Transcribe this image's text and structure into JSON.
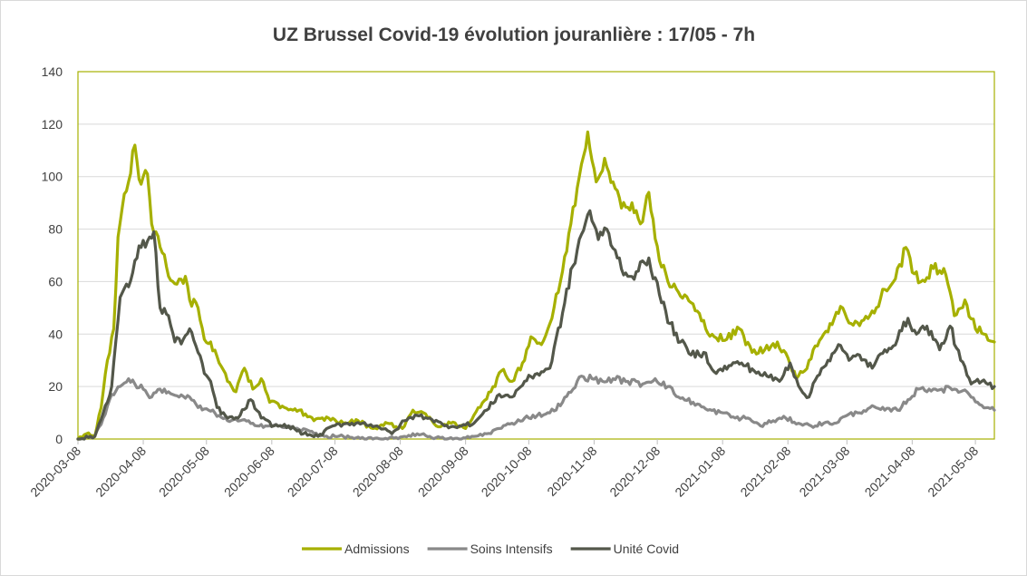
{
  "chart_data": {
    "type": "line",
    "title": "UZ Brussel Covid-19 évolution jouranlière : 17/05 - 7h",
    "xlabel": "",
    "ylabel": "",
    "x_range": [
      "2020-03-08",
      "2021-05-17"
    ],
    "ylim": [
      0,
      140
    ],
    "y_ticks": [
      "0",
      "20",
      "40",
      "60",
      "80",
      "100",
      "120",
      "140"
    ],
    "x_ticks": [
      "2020-03-08",
      "2020-04-08",
      "2020-05-08",
      "2020-06-08",
      "2020-07-08",
      "2020-08-08",
      "2020-09-08",
      "2020-10-08",
      "2020-11-08",
      "2020-12-08",
      "2021-01-08",
      "2021-02-08",
      "2021-03-08",
      "2021-04-08",
      "2021-05-08"
    ],
    "grid": "horizontal",
    "legend_position": "bottom",
    "series": [
      {
        "name": "Admissions",
        "color": "#a6b000",
        "points": [
          [
            "2020-03-08",
            0
          ],
          [
            "2020-03-12",
            2
          ],
          [
            "2020-03-16",
            1
          ],
          [
            "2020-03-19",
            12
          ],
          [
            "2020-03-22",
            30
          ],
          [
            "2020-03-25",
            42
          ],
          [
            "2020-03-27",
            77
          ],
          [
            "2020-03-29",
            88
          ],
          [
            "2020-04-01",
            98
          ],
          [
            "2020-04-04",
            112
          ],
          [
            "2020-04-06",
            99
          ],
          [
            "2020-04-08",
            100
          ],
          [
            "2020-04-10",
            101
          ],
          [
            "2020-04-12",
            82
          ],
          [
            "2020-04-14",
            79
          ],
          [
            "2020-04-17",
            71
          ],
          [
            "2020-04-20",
            62
          ],
          [
            "2020-04-24",
            59
          ],
          [
            "2020-04-28",
            62
          ],
          [
            "2020-04-30",
            53
          ],
          [
            "2020-05-04",
            50
          ],
          [
            "2020-05-07",
            38
          ],
          [
            "2020-05-10",
            37
          ],
          [
            "2020-05-14",
            29
          ],
          [
            "2020-05-18",
            22
          ],
          [
            "2020-05-22",
            18
          ],
          [
            "2020-05-26",
            27
          ],
          [
            "2020-05-30",
            19
          ],
          [
            "2020-06-03",
            23
          ],
          [
            "2020-06-07",
            14
          ],
          [
            "2020-06-14",
            12
          ],
          [
            "2020-06-21",
            11
          ],
          [
            "2020-06-28",
            7
          ],
          [
            "2020-07-05",
            8
          ],
          [
            "2020-07-12",
            6
          ],
          [
            "2020-07-19",
            7
          ],
          [
            "2020-07-26",
            4
          ],
          [
            "2020-08-02",
            6
          ],
          [
            "2020-08-09",
            4
          ],
          [
            "2020-08-14",
            11
          ],
          [
            "2020-08-19",
            10
          ],
          [
            "2020-08-25",
            5
          ],
          [
            "2020-09-01",
            6
          ],
          [
            "2020-09-08",
            4
          ],
          [
            "2020-09-14",
            12
          ],
          [
            "2020-09-20",
            18
          ],
          [
            "2020-09-25",
            26
          ],
          [
            "2020-09-30",
            22
          ],
          [
            "2020-10-05",
            29
          ],
          [
            "2020-10-09",
            39
          ],
          [
            "2020-10-14",
            36
          ],
          [
            "2020-10-19",
            46
          ],
          [
            "2020-10-24",
            64
          ],
          [
            "2020-10-28",
            82
          ],
          [
            "2020-11-01",
            100
          ],
          [
            "2020-11-05",
            117
          ],
          [
            "2020-11-09",
            98
          ],
          [
            "2020-11-13",
            107
          ],
          [
            "2020-11-17",
            98
          ],
          [
            "2020-11-21",
            88
          ],
          [
            "2020-11-26",
            90
          ],
          [
            "2020-11-30",
            82
          ],
          [
            "2020-12-04",
            94
          ],
          [
            "2020-12-09",
            68
          ],
          [
            "2020-12-13",
            60
          ],
          [
            "2020-12-18",
            56
          ],
          [
            "2020-12-24",
            52
          ],
          [
            "2020-12-29",
            45
          ],
          [
            "2021-01-04",
            39
          ],
          [
            "2021-01-10",
            38
          ],
          [
            "2021-01-16",
            42
          ],
          [
            "2021-01-22",
            33
          ],
          [
            "2021-01-28",
            34
          ],
          [
            "2021-02-03",
            37
          ],
          [
            "2021-02-08",
            31
          ],
          [
            "2021-02-12",
            23
          ],
          [
            "2021-02-16",
            26
          ],
          [
            "2021-02-20",
            34
          ],
          [
            "2021-02-25",
            40
          ],
          [
            "2021-03-02",
            46
          ],
          [
            "2021-03-06",
            50
          ],
          [
            "2021-03-10",
            44
          ],
          [
            "2021-03-15",
            45
          ],
          [
            "2021-03-21",
            48
          ],
          [
            "2021-03-26",
            57
          ],
          [
            "2021-03-31",
            61
          ],
          [
            "2021-04-05",
            73
          ],
          [
            "2021-04-09",
            63
          ],
          [
            "2021-04-14",
            60
          ],
          [
            "2021-04-18",
            65
          ],
          [
            "2021-04-23",
            65
          ],
          [
            "2021-04-28",
            47
          ],
          [
            "2021-05-03",
            53
          ],
          [
            "2021-05-08",
            42
          ],
          [
            "2021-05-12",
            40
          ],
          [
            "2021-05-17",
            37
          ]
        ]
      },
      {
        "name": "Soins Intensifs",
        "color": "#898989",
        "points": [
          [
            "2020-03-08",
            0
          ],
          [
            "2020-03-16",
            1
          ],
          [
            "2020-03-20",
            8
          ],
          [
            "2020-03-24",
            17
          ],
          [
            "2020-03-28",
            20
          ],
          [
            "2020-04-01",
            23
          ],
          [
            "2020-04-04",
            21
          ],
          [
            "2020-04-08",
            19
          ],
          [
            "2020-04-12",
            16
          ],
          [
            "2020-04-16",
            19
          ],
          [
            "2020-04-20",
            18
          ],
          [
            "2020-04-25",
            16
          ],
          [
            "2020-04-30",
            16
          ],
          [
            "2020-05-04",
            12
          ],
          [
            "2020-05-09",
            11
          ],
          [
            "2020-05-14",
            9
          ],
          [
            "2020-05-18",
            7
          ],
          [
            "2020-05-24",
            7
          ],
          [
            "2020-05-30",
            6
          ],
          [
            "2020-06-05",
            5
          ],
          [
            "2020-06-12",
            5
          ],
          [
            "2020-06-19",
            4
          ],
          [
            "2020-06-26",
            3
          ],
          [
            "2020-07-03",
            1
          ],
          [
            "2020-07-12",
            1
          ],
          [
            "2020-07-22",
            0
          ],
          [
            "2020-08-02",
            0
          ],
          [
            "2020-08-10",
            1
          ],
          [
            "2020-08-16",
            2
          ],
          [
            "2020-08-22",
            1
          ],
          [
            "2020-08-29",
            0
          ],
          [
            "2020-09-06",
            0
          ],
          [
            "2020-09-12",
            1
          ],
          [
            "2020-09-18",
            2
          ],
          [
            "2020-09-24",
            4
          ],
          [
            "2020-09-30",
            6
          ],
          [
            "2020-10-06",
            8
          ],
          [
            "2020-10-12",
            9
          ],
          [
            "2020-10-18",
            10
          ],
          [
            "2020-10-24",
            14
          ],
          [
            "2020-10-29",
            19
          ],
          [
            "2020-11-02",
            24
          ],
          [
            "2020-11-07",
            23
          ],
          [
            "2020-11-12",
            22
          ],
          [
            "2020-11-17",
            23
          ],
          [
            "2020-11-24",
            22
          ],
          [
            "2020-12-01",
            21
          ],
          [
            "2020-12-07",
            23
          ],
          [
            "2020-12-13",
            20
          ],
          [
            "2020-12-18",
            16
          ],
          [
            "2020-12-25",
            14
          ],
          [
            "2021-01-01",
            11
          ],
          [
            "2021-01-08",
            10
          ],
          [
            "2021-01-14",
            8
          ],
          [
            "2021-01-20",
            8
          ],
          [
            "2021-01-26",
            5
          ],
          [
            "2021-02-01",
            7
          ],
          [
            "2021-02-07",
            8
          ],
          [
            "2021-02-13",
            6
          ],
          [
            "2021-02-19",
            5
          ],
          [
            "2021-02-25",
            6
          ],
          [
            "2021-03-02",
            6
          ],
          [
            "2021-03-08",
            9
          ],
          [
            "2021-03-13",
            10
          ],
          [
            "2021-03-19",
            12
          ],
          [
            "2021-03-26",
            11
          ],
          [
            "2021-04-01",
            11
          ],
          [
            "2021-04-06",
            15
          ],
          [
            "2021-04-11",
            19
          ],
          [
            "2021-04-16",
            19
          ],
          [
            "2021-04-22",
            19
          ],
          [
            "2021-04-28",
            19
          ],
          [
            "2021-05-04",
            18
          ],
          [
            "2021-05-09",
            14
          ],
          [
            "2021-05-14",
            12
          ],
          [
            "2021-05-17",
            11
          ]
        ]
      },
      {
        "name": "Unité Covid",
        "color": "#53574a",
        "points": [
          [
            "2020-03-08",
            0
          ],
          [
            "2020-03-16",
            1
          ],
          [
            "2020-03-20",
            10
          ],
          [
            "2020-03-24",
            20
          ],
          [
            "2020-03-28",
            54
          ],
          [
            "2020-04-01",
            58
          ],
          [
            "2020-04-04",
            68
          ],
          [
            "2020-04-07",
            73
          ],
          [
            "2020-04-11",
            77
          ],
          [
            "2020-04-13",
            79
          ],
          [
            "2020-04-16",
            50
          ],
          [
            "2020-04-20",
            47
          ],
          [
            "2020-04-23",
            37
          ],
          [
            "2020-04-27",
            38
          ],
          [
            "2020-04-30",
            42
          ],
          [
            "2020-05-04",
            33
          ],
          [
            "2020-05-07",
            25
          ],
          [
            "2020-05-10",
            22
          ],
          [
            "2020-05-13",
            12
          ],
          [
            "2020-05-18",
            8
          ],
          [
            "2020-05-23",
            8
          ],
          [
            "2020-05-29",
            15
          ],
          [
            "2020-06-03",
            8
          ],
          [
            "2020-06-09",
            5
          ],
          [
            "2020-06-16",
            5
          ],
          [
            "2020-06-23",
            2
          ],
          [
            "2020-06-30",
            1
          ],
          [
            "2020-07-07",
            5
          ],
          [
            "2020-07-14",
            6
          ],
          [
            "2020-07-21",
            6
          ],
          [
            "2020-07-28",
            5
          ],
          [
            "2020-08-04",
            2
          ],
          [
            "2020-08-10",
            7
          ],
          [
            "2020-08-16",
            9
          ],
          [
            "2020-08-22",
            8
          ],
          [
            "2020-08-29",
            5
          ],
          [
            "2020-09-05",
            5
          ],
          [
            "2020-09-12",
            6
          ],
          [
            "2020-09-18",
            11
          ],
          [
            "2020-09-24",
            17
          ],
          [
            "2020-09-30",
            16
          ],
          [
            "2020-10-06",
            22
          ],
          [
            "2020-10-12",
            25
          ],
          [
            "2020-10-18",
            27
          ],
          [
            "2020-10-24",
            48
          ],
          [
            "2020-10-29",
            66
          ],
          [
            "2020-11-02",
            78
          ],
          [
            "2020-11-06",
            87
          ],
          [
            "2020-11-10",
            76
          ],
          [
            "2020-11-14",
            80
          ],
          [
            "2020-11-19",
            69
          ],
          [
            "2020-11-24",
            62
          ],
          [
            "2020-11-29",
            64
          ],
          [
            "2020-12-04",
            69
          ],
          [
            "2020-12-09",
            55
          ],
          [
            "2020-12-14",
            44
          ],
          [
            "2020-12-19",
            37
          ],
          [
            "2020-12-24",
            32
          ],
          [
            "2020-12-30",
            33
          ],
          [
            "2021-01-05",
            25
          ],
          [
            "2021-01-11",
            28
          ],
          [
            "2021-01-17",
            29
          ],
          [
            "2021-01-23",
            26
          ],
          [
            "2021-01-29",
            24
          ],
          [
            "2021-02-04",
            22
          ],
          [
            "2021-02-09",
            29
          ],
          [
            "2021-02-14",
            19
          ],
          [
            "2021-02-18",
            16
          ],
          [
            "2021-02-22",
            24
          ],
          [
            "2021-02-27",
            30
          ],
          [
            "2021-03-04",
            36
          ],
          [
            "2021-03-09",
            30
          ],
          [
            "2021-03-14",
            32
          ],
          [
            "2021-03-20",
            27
          ],
          [
            "2021-03-26",
            34
          ],
          [
            "2021-04-01",
            38
          ],
          [
            "2021-04-06",
            46
          ],
          [
            "2021-04-10",
            40
          ],
          [
            "2021-04-15",
            43
          ],
          [
            "2021-04-21",
            34
          ],
          [
            "2021-04-26",
            43
          ],
          [
            "2021-05-01",
            30
          ],
          [
            "2021-05-06",
            21
          ],
          [
            "2021-05-11",
            22
          ],
          [
            "2021-05-17",
            20
          ]
        ]
      }
    ]
  }
}
